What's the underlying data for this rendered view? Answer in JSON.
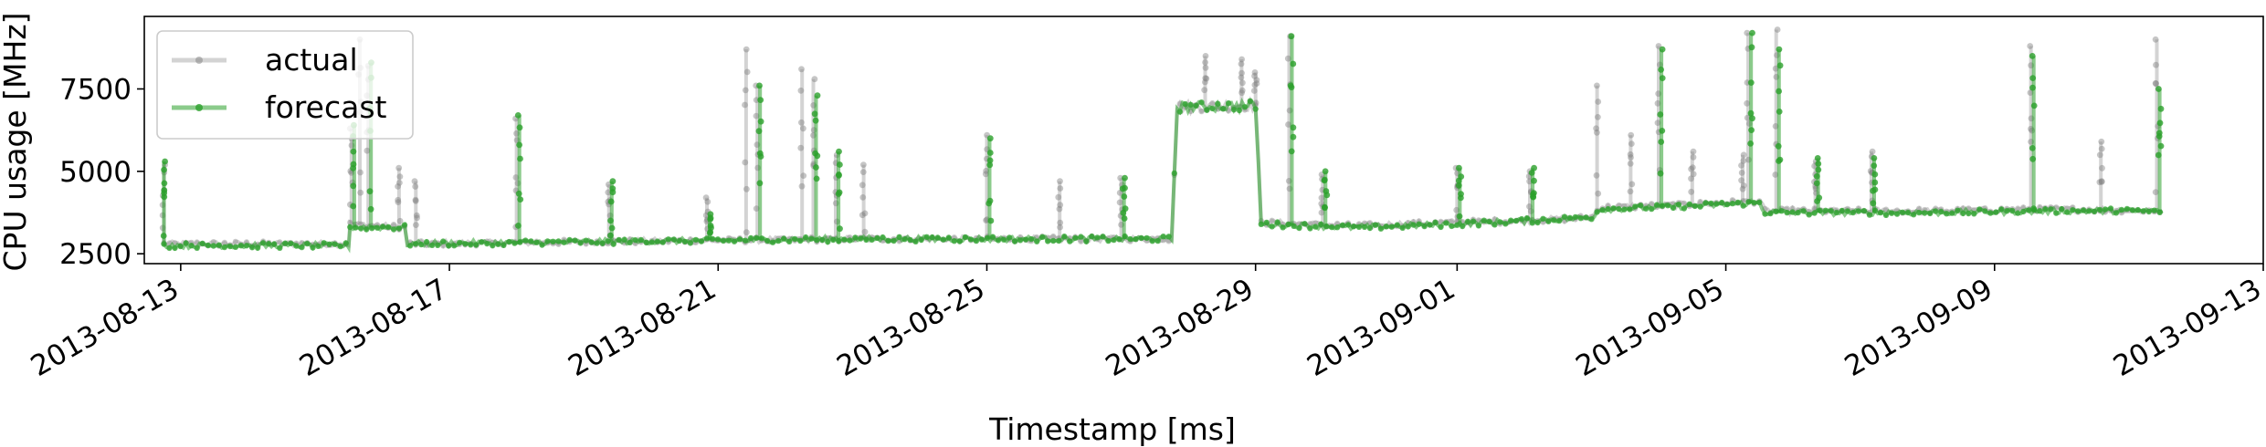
{
  "chart_data": {
    "type": "line",
    "xlabel": "Timestamp [ms]",
    "ylabel": "CPU usage [MHz]",
    "ylim": [
      2200,
      9700
    ],
    "xlim": [
      "2013-08-12T11:00",
      "2013-09-13T00:00"
    ],
    "legend_position": "top-left",
    "grid": false,
    "x_ticks": [
      "2013-08-13",
      "2013-08-17",
      "2013-08-21",
      "2013-08-25",
      "2013-08-29",
      "2013-09-01",
      "2013-09-05",
      "2013-09-09",
      "2013-09-13"
    ],
    "y_ticks": [
      2500,
      5000,
      7500
    ],
    "series": [
      {
        "name": "actual",
        "color": "#808080",
        "baseline": [
          [
            "2013-08-12T18:00",
            2800
          ],
          [
            "2013-08-15T12:00",
            2800
          ],
          [
            "2013-08-15T12:30",
            3400
          ],
          [
            "2013-08-16T08:00",
            3300
          ],
          [
            "2013-08-16T09:00",
            2800
          ],
          [
            "2013-08-23T00:00",
            2950
          ],
          [
            "2013-08-27T18:00",
            2950
          ],
          [
            "2013-08-27T20:00",
            6950
          ],
          [
            "2013-08-29T00:00",
            7000
          ],
          [
            "2013-08-29T02:00",
            3450
          ],
          [
            "2013-08-30T12:00",
            3350
          ],
          [
            "2013-09-01T00:00",
            3450
          ],
          [
            "2013-09-02T00:00",
            3500
          ],
          [
            "2013-09-03T00:00",
            3600
          ],
          [
            "2013-09-03T03:00",
            3900
          ],
          [
            "2013-09-04T12:00",
            4000
          ],
          [
            "2013-09-05T12:00",
            4100
          ],
          [
            "2013-09-05T14:00",
            3800
          ],
          [
            "2013-09-08T00:00",
            3800
          ],
          [
            "2013-09-10T00:00",
            3850
          ],
          [
            "2013-09-11T12:00",
            3800
          ]
        ],
        "spikes": [
          [
            "2013-08-12T18:00",
            5200
          ],
          [
            "2013-08-15T13:00",
            6300
          ],
          [
            "2013-08-15T16:00",
            9000
          ],
          [
            "2013-08-15T19:00",
            8200
          ],
          [
            "2013-08-16T06:00",
            5100
          ],
          [
            "2013-08-16T12:00",
            4700
          ],
          [
            "2013-08-18T00:00",
            6600
          ],
          [
            "2013-08-19T09:00",
            4600
          ],
          [
            "2013-08-20T20:00",
            4200
          ],
          [
            "2013-08-21T10:00",
            8700
          ],
          [
            "2013-08-21T14:00",
            7600
          ],
          [
            "2013-08-22T06:00",
            8100
          ],
          [
            "2013-08-22T10:00",
            7800
          ],
          [
            "2013-08-22T18:00",
            5500
          ],
          [
            "2013-08-23T04:00",
            5200
          ],
          [
            "2013-08-25T00:00",
            6100
          ],
          [
            "2013-08-26T02:00",
            4700
          ],
          [
            "2013-08-27T00:00",
            4800
          ],
          [
            "2013-08-28T06:00",
            8500
          ],
          [
            "2013-08-28T19:00",
            8400
          ],
          [
            "2013-08-29T00:00",
            8000
          ],
          [
            "2013-08-29T12:00",
            9100
          ],
          [
            "2013-08-30T00:00",
            4900
          ],
          [
            "2013-09-01T00:00",
            5100
          ],
          [
            "2013-09-02T02:00",
            5000
          ],
          [
            "2013-09-03T02:00",
            7600
          ],
          [
            "2013-09-03T14:00",
            6100
          ],
          [
            "2013-09-04T00:00",
            8800
          ],
          [
            "2013-09-04T12:00",
            5600
          ],
          [
            "2013-09-05T06:00",
            5500
          ],
          [
            "2013-09-05T08:00",
            9200
          ],
          [
            "2013-09-05T18:00",
            9300
          ],
          [
            "2013-09-06T08:00",
            5300
          ],
          [
            "2013-09-07T04:00",
            5600
          ],
          [
            "2013-09-09T13:00",
            8800
          ],
          [
            "2013-09-10T14:00",
            5900
          ],
          [
            "2013-09-11T10:00",
            9000
          ]
        ]
      },
      {
        "name": "forecast",
        "color": "#2ca02c",
        "baseline": [
          [
            "2013-08-12T18:00",
            2750
          ],
          [
            "2013-08-15T12:00",
            2750
          ],
          [
            "2013-08-15T12:30",
            3300
          ],
          [
            "2013-08-16T08:00",
            3300
          ],
          [
            "2013-08-16T09:00",
            2800
          ],
          [
            "2013-08-23T00:00",
            2950
          ],
          [
            "2013-08-27T18:00",
            2950
          ],
          [
            "2013-08-27T20:00",
            6950
          ],
          [
            "2013-08-29T00:00",
            7000
          ],
          [
            "2013-08-29T02:00",
            3400
          ],
          [
            "2013-08-30T12:00",
            3300
          ],
          [
            "2013-09-01T00:00",
            3400
          ],
          [
            "2013-09-02T00:00",
            3500
          ],
          [
            "2013-09-03T00:00",
            3600
          ],
          [
            "2013-09-03T03:00",
            3850
          ],
          [
            "2013-09-04T12:00",
            3950
          ],
          [
            "2013-09-05T12:00",
            4050
          ],
          [
            "2013-09-05T14:00",
            3750
          ],
          [
            "2013-09-08T00:00",
            3750
          ],
          [
            "2013-09-10T00:00",
            3800
          ],
          [
            "2013-09-11T12:00",
            3800
          ]
        ],
        "spikes": [
          [
            "2013-08-12T18:00",
            5300
          ],
          [
            "2013-08-15T14:00",
            6400
          ],
          [
            "2013-08-15T20:00",
            8300
          ],
          [
            "2013-08-18T01:00",
            6700
          ],
          [
            "2013-08-19T10:00",
            4700
          ],
          [
            "2013-08-20T21:00",
            3700
          ],
          [
            "2013-08-21T15:00",
            7600
          ],
          [
            "2013-08-22T11:00",
            7300
          ],
          [
            "2013-08-22T19:00",
            5600
          ],
          [
            "2013-08-25T01:00",
            6000
          ],
          [
            "2013-08-27T01:00",
            4800
          ],
          [
            "2013-08-29T13:00",
            9100
          ],
          [
            "2013-08-30T01:00",
            5000
          ],
          [
            "2013-09-01T01:00",
            5100
          ],
          [
            "2013-09-02T03:00",
            5100
          ],
          [
            "2013-09-04T01:00",
            8700
          ],
          [
            "2013-09-05T09:00",
            9200
          ],
          [
            "2013-09-05T19:00",
            8700
          ],
          [
            "2013-09-06T09:00",
            5400
          ],
          [
            "2013-09-07T05:00",
            5400
          ],
          [
            "2013-09-09T14:00",
            8500
          ],
          [
            "2013-09-11T11:00",
            7500
          ]
        ]
      }
    ]
  }
}
